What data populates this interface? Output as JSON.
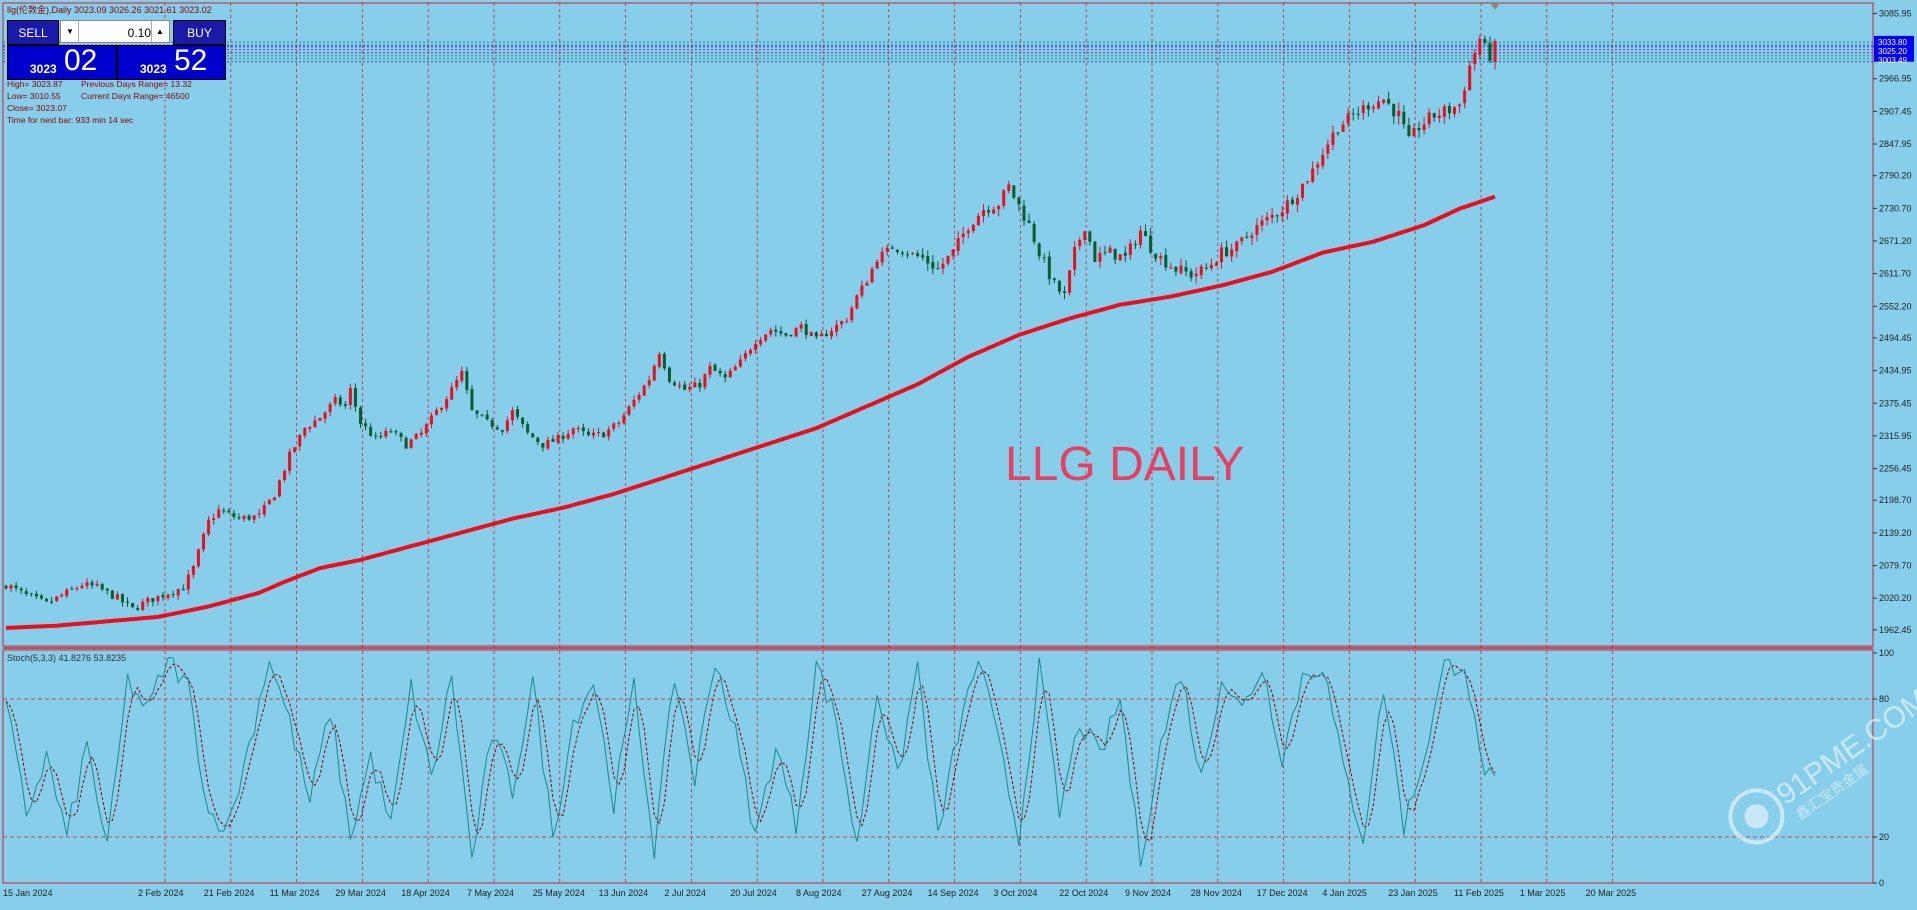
{
  "window": {
    "title": "llg(伦敦金),Daily  3023.09 3026.26 3021.61 3023.02"
  },
  "trade_panel": {
    "sell_label": "SELL",
    "buy_label": "BUY",
    "lot_value": "0.10",
    "sell_price_prefix": "3023",
    "sell_price_big": "02",
    "buy_price_prefix": "3023",
    "buy_price_big": "52"
  },
  "info": {
    "high": "High= 3023.87",
    "prev_range": "Previous Days Range= 13.32",
    "low": "Low= 3010.55",
    "cur_range": "Current Days Range= 46500",
    "close": "Close= 3023.07",
    "timer": "Time for next bar: 933 min 14 sec"
  },
  "annotation": "LLG DAILY",
  "watermark": "91PME.COM",
  "watermark_sub": "鑫汇宝贵金属",
  "stoch_label": "Stoch(5,3,3) 41.8276 53.8235",
  "colors": {
    "background": "#87ceeb",
    "bull": "#e8101e",
    "bear": "#0a5c2e",
    "ma": "#e8101e",
    "stoch_main": "#1a8a8a",
    "stoch_signal": "#8b0000",
    "grid": "#d0202a"
  },
  "chart_data": [
    {
      "type": "candlestick",
      "ylim": [
        1933,
        3105
      ],
      "y_ticks": [
        "3085.95",
        "3025.20",
        "2966.95",
        "2907.45",
        "2847.95",
        "2790.20",
        "2730.70",
        "2671.20",
        "2611.70",
        "2552.20",
        "2494.45",
        "2434.95",
        "2375.45",
        "2315.95",
        "2256.45",
        "2198.70",
        "2139.20",
        "2079.70",
        "2020.20",
        "1962.45"
      ],
      "price_tags": [
        "3033.80",
        "3025.20",
        "3003.49"
      ],
      "x_ticks": [
        "15 Jan 2024",
        "2 Feb 2024",
        "21 Feb 2024",
        "11 Mar 2024",
        "29 Mar 2024",
        "18 Apr 2024",
        "7 May 2024",
        "25 May 2024",
        "13 Jun 2024",
        "2 Jul 2024",
        "20 Jul 2024",
        "8 Aug 2024",
        "27 Aug 2024",
        "14 Sep 2024",
        "3 Oct 2024",
        "22 Oct 2024",
        "9 Nov 2024",
        "28 Nov 2024",
        "17 Dec 2024",
        "4 Jan 2025",
        "23 Jan 2025",
        "11 Feb 2025",
        "1 Mar 2025",
        "20 Mar 2025"
      ],
      "close_anchors": [
        [
          0,
          2045
        ],
        [
          4,
          2025
        ],
        [
          8,
          2010
        ],
        [
          12,
          2030
        ],
        [
          15,
          2045
        ],
        [
          18,
          2040
        ],
        [
          22,
          2020
        ],
        [
          25,
          2000
        ],
        [
          28,
          2015
        ],
        [
          32,
          2030
        ],
        [
          35,
          2040
        ],
        [
          37,
          2075
        ],
        [
          40,
          2160
        ],
        [
          42,
          2180
        ],
        [
          46,
          2165
        ],
        [
          50,
          2170
        ],
        [
          53,
          2210
        ],
        [
          56,
          2280
        ],
        [
          59,
          2330
        ],
        [
          62,
          2350
        ],
        [
          65,
          2380
        ],
        [
          67,
          2370
        ],
        [
          68,
          2400
        ],
        [
          70,
          2340
        ],
        [
          73,
          2310
        ],
        [
          76,
          2325
        ],
        [
          79,
          2300
        ],
        [
          82,
          2320
        ],
        [
          85,
          2360
        ],
        [
          88,
          2400
        ],
        [
          90,
          2430
        ],
        [
          92,
          2360
        ],
        [
          95,
          2340
        ],
        [
          98,
          2330
        ],
        [
          100,
          2360
        ],
        [
          103,
          2320
        ],
        [
          106,
          2300
        ],
        [
          109,
          2310
        ],
        [
          112,
          2330
        ],
        [
          115,
          2315
        ],
        [
          118,
          2320
        ],
        [
          121,
          2340
        ],
        [
          124,
          2380
        ],
        [
          127,
          2420
        ],
        [
          129,
          2470
        ],
        [
          131,
          2420
        ],
        [
          134,
          2400
        ],
        [
          137,
          2410
        ],
        [
          139,
          2440
        ],
        [
          142,
          2420
        ],
        [
          145,
          2450
        ],
        [
          148,
          2490
        ],
        [
          151,
          2510
        ],
        [
          154,
          2500
        ],
        [
          157,
          2515
        ],
        [
          160,
          2490
        ],
        [
          163,
          2510
        ],
        [
          166,
          2530
        ],
        [
          168,
          2570
        ],
        [
          170,
          2600
        ],
        [
          172,
          2640
        ],
        [
          175,
          2660
        ],
        [
          178,
          2650
        ],
        [
          181,
          2640
        ],
        [
          184,
          2620
        ],
        [
          187,
          2650
        ],
        [
          190,
          2700
        ],
        [
          193,
          2730
        ],
        [
          196,
          2740
        ],
        [
          198,
          2770
        ],
        [
          200,
          2735
        ],
        [
          202,
          2700
        ],
        [
          204,
          2650
        ],
        [
          207,
          2590
        ],
        [
          209,
          2570
        ],
        [
          211,
          2650
        ],
        [
          213,
          2700
        ],
        [
          215,
          2640
        ],
        [
          218,
          2650
        ],
        [
          221,
          2640
        ],
        [
          224,
          2690
        ],
        [
          226,
          2660
        ],
        [
          228,
          2640
        ],
        [
          231,
          2620
        ],
        [
          234,
          2610
        ],
        [
          237,
          2620
        ],
        [
          240,
          2650
        ],
        [
          243,
          2660
        ],
        [
          246,
          2690
        ],
        [
          249,
          2710
        ],
        [
          252,
          2730
        ],
        [
          255,
          2760
        ],
        [
          258,
          2800
        ],
        [
          261,
          2850
        ],
        [
          263,
          2880
        ],
        [
          266,
          2900
        ],
        [
          269,
          2920
        ],
        [
          272,
          2930
        ],
        [
          275,
          2900
        ],
        [
          277,
          2850
        ],
        [
          279,
          2880
        ],
        [
          282,
          2900
        ],
        [
          285,
          2910
        ],
        [
          287,
          2920
        ],
        [
          289,
          2990
        ],
        [
          291,
          3040
        ],
        [
          292,
          3020
        ],
        [
          293,
          3010
        ],
        [
          294,
          3023
        ]
      ],
      "ma_anchors": [
        [
          0,
          1966
        ],
        [
          10,
          1970
        ],
        [
          20,
          1978
        ],
        [
          30,
          1986
        ],
        [
          40,
          2005
        ],
        [
          50,
          2030
        ],
        [
          55,
          2050
        ],
        [
          62,
          2075
        ],
        [
          70,
          2090
        ],
        [
          80,
          2115
        ],
        [
          90,
          2140
        ],
        [
          100,
          2165
        ],
        [
          110,
          2185
        ],
        [
          120,
          2210
        ],
        [
          130,
          2240
        ],
        [
          140,
          2270
        ],
        [
          150,
          2300
        ],
        [
          160,
          2330
        ],
        [
          170,
          2370
        ],
        [
          180,
          2410
        ],
        [
          190,
          2460
        ],
        [
          200,
          2500
        ],
        [
          210,
          2530
        ],
        [
          220,
          2555
        ],
        [
          230,
          2570
        ],
        [
          240,
          2590
        ],
        [
          250,
          2615
        ],
        [
          260,
          2650
        ],
        [
          270,
          2670
        ],
        [
          280,
          2700
        ],
        [
          287,
          2730
        ],
        [
          294,
          2752
        ]
      ],
      "last_close": 3023.02
    },
    {
      "type": "line",
      "name": "Stoch(5,3,3)",
      "ylim": [
        0,
        100
      ],
      "y_ticks": [
        "100",
        "80",
        "20",
        "0"
      ],
      "levels": [
        80,
        20
      ],
      "main_last": 41.8276,
      "signal_last": 53.8235,
      "main_anchors": [
        [
          0,
          78
        ],
        [
          4,
          30
        ],
        [
          8,
          55
        ],
        [
          12,
          20
        ],
        [
          16,
          60
        ],
        [
          20,
          15
        ],
        [
          24,
          88
        ],
        [
          28,
          75
        ],
        [
          32,
          98
        ],
        [
          36,
          85
        ],
        [
          40,
          30
        ],
        [
          44,
          25
        ],
        [
          48,
          60
        ],
        [
          52,
          98
        ],
        [
          56,
          70
        ],
        [
          60,
          35
        ],
        [
          64,
          75
        ],
        [
          68,
          20
        ],
        [
          72,
          55
        ],
        [
          76,
          25
        ],
        [
          80,
          85
        ],
        [
          84,
          45
        ],
        [
          88,
          90
        ],
        [
          92,
          10
        ],
        [
          96,
          65
        ],
        [
          100,
          40
        ],
        [
          104,
          88
        ],
        [
          108,
          20
        ],
        [
          112,
          70
        ],
        [
          116,
          88
        ],
        [
          120,
          35
        ],
        [
          124,
          85
        ],
        [
          128,
          15
        ],
        [
          132,
          90
        ],
        [
          136,
          45
        ],
        [
          140,
          98
        ],
        [
          144,
          65
        ],
        [
          148,
          20
        ],
        [
          152,
          60
        ],
        [
          156,
          25
        ],
        [
          160,
          95
        ],
        [
          164,
          70
        ],
        [
          168,
          15
        ],
        [
          172,
          85
        ],
        [
          176,
          45
        ],
        [
          180,
          95
        ],
        [
          184,
          20
        ],
        [
          188,
          65
        ],
        [
          192,
          98
        ],
        [
          196,
          60
        ],
        [
          200,
          20
        ],
        [
          204,
          95
        ],
        [
          208,
          30
        ],
        [
          212,
          70
        ],
        [
          216,
          55
        ],
        [
          220,
          80
        ],
        [
          224,
          10
        ],
        [
          228,
          60
        ],
        [
          232,
          92
        ],
        [
          236,
          45
        ],
        [
          240,
          90
        ],
        [
          244,
          75
        ],
        [
          248,
          94
        ],
        [
          252,
          55
        ],
        [
          256,
          90
        ],
        [
          260,
          95
        ],
        [
          264,
          50
        ],
        [
          268,
          20
        ],
        [
          272,
          85
        ],
        [
          276,
          25
        ],
        [
          280,
          55
        ],
        [
          284,
          94
        ],
        [
          288,
          96
        ],
        [
          291,
          55
        ],
        [
          294,
          42
        ]
      ]
    }
  ]
}
